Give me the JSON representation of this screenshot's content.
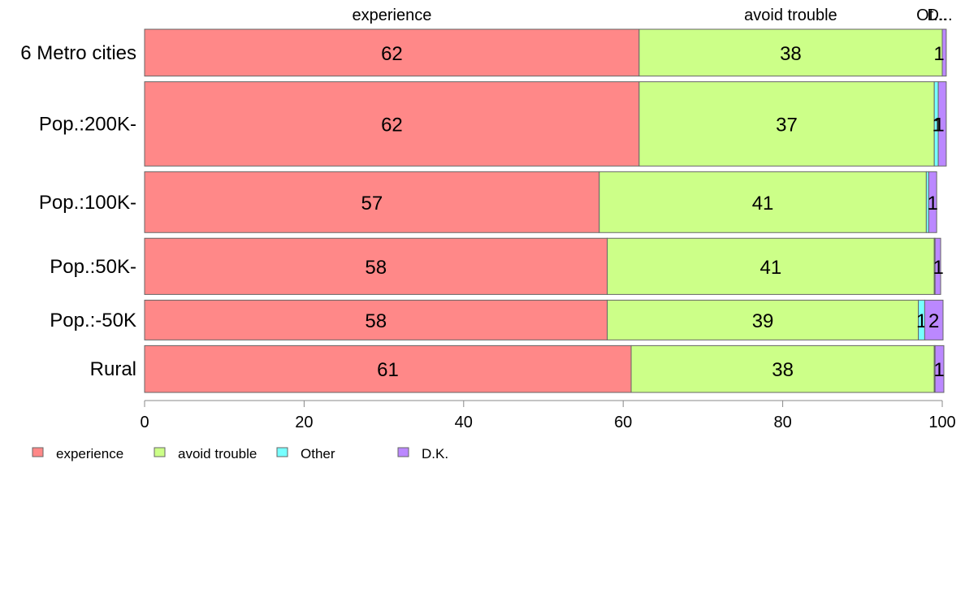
{
  "chart_data": {
    "type": "bar",
    "orientation": "horizontal",
    "stacked": true,
    "categories": [
      "6 Metro cities",
      "Pop.:200K-",
      "Pop.:100K-",
      "Pop.:50K-",
      "Pop.:-50K",
      "Rural"
    ],
    "row_weights": [
      1.0,
      1.8,
      1.3,
      1.2,
      0.85,
      1.0
    ],
    "series": [
      {
        "name": "experience",
        "values": [
          62,
          62,
          57,
          58,
          58,
          61
        ],
        "labels": [
          "62",
          "62",
          "57",
          "58",
          "58",
          "61"
        ]
      },
      {
        "name": "avoid trouble",
        "values": [
          38,
          37,
          41,
          41,
          39,
          38
        ],
        "labels": [
          "38",
          "37",
          "41",
          "41",
          "39",
          "38"
        ]
      },
      {
        "name": "Other",
        "values": [
          0,
          0.5,
          0.3,
          0.1,
          0.8,
          0.1
        ],
        "labels": [
          "",
          "1",
          "",
          "",
          "1",
          ""
        ]
      },
      {
        "name": "D.K.",
        "values": [
          0.5,
          1,
          1,
          0.7,
          2.3,
          1.1
        ],
        "labels": [
          "1",
          "1",
          "1",
          "1",
          "2",
          "1"
        ]
      }
    ],
    "top_labels": [
      "experience",
      "avoid trouble",
      "Ot...",
      "D..."
    ],
    "xlim": [
      0,
      100
    ],
    "xticks": [
      "0",
      "20",
      "40",
      "60",
      "80",
      "100"
    ],
    "legend_position": "bottom-left",
    "colors": [
      "#ff8888",
      "#ccff88",
      "#77ffff",
      "#bb88ff"
    ]
  }
}
